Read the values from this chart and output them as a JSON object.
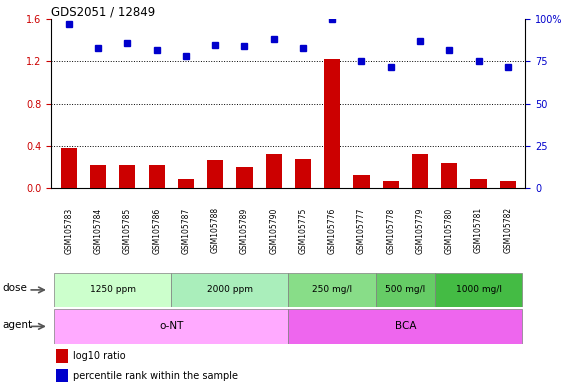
{
  "title": "GDS2051 / 12849",
  "samples": [
    "GSM105783",
    "GSM105784",
    "GSM105785",
    "GSM105786",
    "GSM105787",
    "GSM105788",
    "GSM105789",
    "GSM105790",
    "GSM105775",
    "GSM105776",
    "GSM105777",
    "GSM105778",
    "GSM105779",
    "GSM105780",
    "GSM105781",
    "GSM105782"
  ],
  "log10_ratio": [
    0.38,
    0.22,
    0.22,
    0.22,
    0.09,
    0.27,
    0.2,
    0.32,
    0.28,
    1.22,
    0.12,
    0.07,
    0.32,
    0.24,
    0.09,
    0.07
  ],
  "percentile_rank": [
    97,
    83,
    86,
    82,
    78,
    85,
    84,
    88,
    83,
    100,
    75,
    72,
    87,
    82,
    75,
    72
  ],
  "ylim_left": [
    0,
    1.6
  ],
  "ylim_right": [
    0,
    100
  ],
  "yticks_left": [
    0,
    0.4,
    0.8,
    1.2,
    1.6
  ],
  "yticks_right": [
    0,
    25,
    50,
    75,
    100
  ],
  "dose_groups": [
    {
      "label": "1250 ppm",
      "start": 0,
      "end": 4,
      "color": "#ccffcc"
    },
    {
      "label": "2000 ppm",
      "start": 4,
      "end": 8,
      "color": "#aaeebb"
    },
    {
      "label": "250 mg/l",
      "start": 8,
      "end": 11,
      "color": "#88dd88"
    },
    {
      "label": "500 mg/l",
      "start": 11,
      "end": 13,
      "color": "#66cc66"
    },
    {
      "label": "1000 mg/l",
      "start": 13,
      "end": 16,
      "color": "#44bb44"
    }
  ],
  "agent_groups": [
    {
      "label": "o-NT",
      "start": 0,
      "end": 8,
      "color": "#ffaaff"
    },
    {
      "label": "BCA",
      "start": 8,
      "end": 16,
      "color": "#ee66ee"
    }
  ],
  "bar_color": "#cc0000",
  "dot_color": "#0000cc",
  "background_color": "#ffffff",
  "grid_color": "#000000",
  "tick_color_left": "#cc0000",
  "tick_color_right": "#0000cc",
  "label_fontsize": 7,
  "tick_fontsize": 7,
  "bar_width": 0.55
}
